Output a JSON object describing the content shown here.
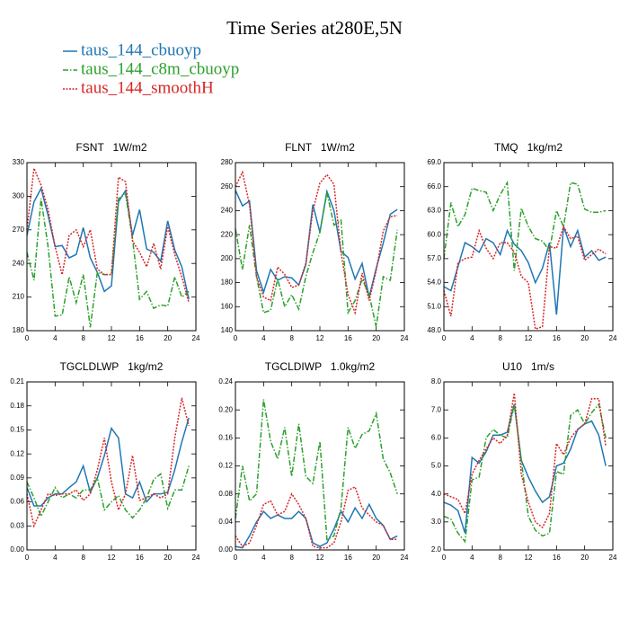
{
  "title": "Time Series at280E,5N",
  "legend": [
    {
      "name": "taus_144_cbuoyp",
      "color": "#1f77b4",
      "dash": "solid"
    },
    {
      "name": "taus_144_c8m_cbuoyp",
      "color": "#2ca02c",
      "dash": "dashdot"
    },
    {
      "name": "taus_144_smoothH",
      "color": "#d62728",
      "dash": "dot"
    }
  ],
  "chart_data": [
    {
      "type": "line",
      "title": "FSNT   1W/m2",
      "x": [
        0,
        1,
        2,
        3,
        4,
        5,
        6,
        7,
        8,
        9,
        10,
        11,
        12,
        13,
        14,
        15,
        16,
        17,
        18,
        19,
        20,
        21,
        22,
        23
      ],
      "xlim": [
        0,
        24
      ],
      "xticks": [
        0,
        4,
        8,
        12,
        16,
        20,
        24
      ],
      "ylim": [
        180,
        330
      ],
      "yticks": [
        180,
        210,
        240,
        270,
        300,
        330
      ],
      "series": [
        {
          "values": [
            265,
            295,
            307,
            283,
            255,
            256,
            245,
            248,
            272,
            245,
            232,
            215,
            220,
            295,
            305,
            265,
            288,
            253,
            250,
            242,
            278,
            252,
            237,
            208
          ]
        },
        {
          "values": [
            250,
            225,
            298,
            255,
            193,
            194,
            228,
            205,
            230,
            183,
            232,
            230,
            230,
            298,
            302,
            262,
            208,
            215,
            200,
            203,
            202,
            228,
            210,
            215
          ]
        },
        {
          "values": [
            270,
            325,
            310,
            288,
            255,
            230,
            265,
            270,
            255,
            270,
            235,
            230,
            230,
            317,
            313,
            260,
            250,
            237,
            258,
            235,
            273,
            248,
            228,
            205
          ]
        }
      ]
    },
    {
      "type": "line",
      "title": "FLNT   1W/m2",
      "x": [
        0,
        1,
        2,
        3,
        4,
        5,
        6,
        7,
        8,
        9,
        10,
        11,
        12,
        13,
        14,
        15,
        16,
        17,
        18,
        19,
        20,
        21,
        22,
        23
      ],
      "xlim": [
        0,
        24
      ],
      "xticks": [
        0,
        4,
        8,
        12,
        16,
        20,
        24
      ],
      "ylim": [
        140,
        280
      ],
      "yticks": [
        140,
        160,
        180,
        200,
        220,
        240,
        260,
        280
      ],
      "series": [
        {
          "values": [
            257,
            244,
            248,
            190,
            172,
            191,
            182,
            185,
            184,
            178,
            195,
            245,
            222,
            256,
            240,
            206,
            201,
            183,
            196,
            168,
            192,
            213,
            237,
            241
          ]
        },
        {
          "values": [
            225,
            191,
            228,
            185,
            155,
            157,
            183,
            160,
            170,
            158,
            185,
            205,
            222,
            255,
            228,
            232,
            155,
            165,
            183,
            170,
            143,
            185,
            182,
            224
          ]
        },
        {
          "values": [
            260,
            272,
            245,
            185,
            168,
            165,
            193,
            187,
            176,
            178,
            196,
            240,
            263,
            270,
            262,
            205,
            170,
            155,
            188,
            165,
            190,
            223,
            235,
            236
          ]
        }
      ]
    },
    {
      "type": "line",
      "title": "TMQ   1kg/m2",
      "x": [
        0,
        1,
        2,
        3,
        4,
        5,
        6,
        7,
        8,
        9,
        10,
        11,
        12,
        13,
        14,
        15,
        16,
        17,
        18,
        19,
        20,
        21,
        22,
        23
      ],
      "xlim": [
        0,
        24
      ],
      "xticks": [
        0,
        4,
        8,
        12,
        16,
        20,
        24
      ],
      "ylim": [
        48,
        69
      ],
      "yticks": [
        {
          "value": 48,
          "label": "48.0"
        },
        {
          "value": 51,
          "label": "51.0"
        },
        {
          "value": 54,
          "label": "54.0"
        },
        {
          "value": 57,
          "label": "57.0"
        },
        {
          "value": 60,
          "label": "60.0"
        },
        {
          "value": 63,
          "label": "63.0"
        },
        {
          "value": 66,
          "label": "66.0"
        },
        {
          "value": 69,
          "label": "69.0"
        }
      ],
      "series": [
        {
          "values": [
            53.5,
            53.0,
            56.0,
            59.0,
            58.5,
            57.8,
            59.5,
            59.0,
            57.5,
            60.5,
            58.8,
            58.0,
            56.5,
            54.0,
            55.8,
            59.0,
            50.0,
            61.0,
            58.5,
            60.5,
            57.2,
            58.0,
            56.8,
            57.2
          ]
        },
        {
          "values": [
            57.0,
            64.0,
            61.0,
            62.5,
            65.8,
            65.5,
            65.3,
            63.0,
            65.0,
            66.5,
            55.5,
            63.3,
            61.0,
            59.5,
            59.2,
            58.0,
            63.0,
            61.0,
            66.5,
            66.3,
            63.2,
            62.8,
            62.8,
            63.0
          ]
        },
        {
          "values": [
            53.0,
            49.8,
            56.5,
            57.0,
            57.2,
            60.5,
            58.3,
            57.0,
            59.0,
            59.0,
            57.8,
            54.8,
            54.0,
            48.2,
            48.5,
            58.5,
            58.3,
            61.0,
            59.5,
            59.8,
            56.8,
            57.5,
            58.2,
            57.6
          ]
        }
      ]
    },
    {
      "type": "line",
      "title": "TGCLDLWP   1kg/m2",
      "x": [
        0,
        1,
        2,
        3,
        4,
        5,
        6,
        7,
        8,
        9,
        10,
        11,
        12,
        13,
        14,
        15,
        16,
        17,
        18,
        19,
        20,
        21,
        22,
        23
      ],
      "xlim": [
        0,
        24
      ],
      "xticks": [
        0,
        4,
        8,
        12,
        16,
        20,
        24
      ],
      "ylim": [
        0,
        0.21
      ],
      "yticks": [
        {
          "value": 0,
          "label": "0.00"
        },
        {
          "value": 0.03,
          "label": "0.03"
        },
        {
          "value": 0.06,
          "label": "0.06"
        },
        {
          "value": 0.09,
          "label": "0.09"
        },
        {
          "value": 0.12,
          "label": "0.12"
        },
        {
          "value": 0.15,
          "label": "0.15"
        },
        {
          "value": 0.18,
          "label": "0.18"
        },
        {
          "value": 0.21,
          "label": "0.21"
        }
      ],
      "series": [
        {
          "values": [
            0.078,
            0.055,
            0.055,
            0.065,
            0.07,
            0.07,
            0.078,
            0.085,
            0.105,
            0.072,
            0.09,
            0.118,
            0.152,
            0.14,
            0.07,
            0.065,
            0.085,
            0.06,
            0.07,
            0.07,
            0.072,
            0.1,
            0.135,
            0.165
          ]
        },
        {
          "values": [
            0.085,
            0.065,
            0.042,
            0.06,
            0.078,
            0.065,
            0.07,
            0.065,
            0.075,
            0.075,
            0.09,
            0.05,
            0.06,
            0.068,
            0.05,
            0.04,
            0.05,
            0.065,
            0.088,
            0.095,
            0.052,
            0.075,
            0.075,
            0.105
          ]
        },
        {
          "values": [
            0.07,
            0.03,
            0.05,
            0.07,
            0.068,
            0.07,
            0.07,
            0.075,
            0.062,
            0.07,
            0.1,
            0.14,
            0.085,
            0.05,
            0.07,
            0.118,
            0.062,
            0.065,
            0.07,
            0.065,
            0.07,
            0.14,
            0.19,
            0.155
          ]
        }
      ]
    },
    {
      "type": "line",
      "title": "TGCLDIWP   1.0kg/m2",
      "x": [
        0,
        1,
        2,
        3,
        4,
        5,
        6,
        7,
        8,
        9,
        10,
        11,
        12,
        13,
        14,
        15,
        16,
        17,
        18,
        19,
        20,
        21,
        22,
        23
      ],
      "xlim": [
        0,
        24
      ],
      "xticks": [
        0,
        4,
        8,
        12,
        16,
        20,
        24
      ],
      "ylim": [
        0,
        0.24
      ],
      "yticks": [
        {
          "value": 0,
          "label": "0.00"
        },
        {
          "value": 0.04,
          "label": "0.04"
        },
        {
          "value": 0.08,
          "label": "0.08"
        },
        {
          "value": 0.12,
          "label": "0.12"
        },
        {
          "value": 0.16,
          "label": "0.16"
        },
        {
          "value": 0.2,
          "label": "0.20"
        },
        {
          "value": 0.24,
          "label": "0.24"
        }
      ],
      "series": [
        {
          "values": [
            0.005,
            0.003,
            0.02,
            0.04,
            0.055,
            0.045,
            0.05,
            0.045,
            0.045,
            0.055,
            0.045,
            0.01,
            0.005,
            0.01,
            0.03,
            0.055,
            0.04,
            0.06,
            0.045,
            0.065,
            0.045,
            0.035,
            0.015,
            0.02
          ]
        },
        {
          "values": [
            0.045,
            0.12,
            0.07,
            0.08,
            0.215,
            0.155,
            0.13,
            0.175,
            0.105,
            0.18,
            0.105,
            0.095,
            0.155,
            0.015,
            0.02,
            0.06,
            0.175,
            0.145,
            0.165,
            0.17,
            0.195,
            0.13,
            0.11,
            0.08
          ]
        },
        {
          "values": [
            0.02,
            0.005,
            0.01,
            0.035,
            0.065,
            0.07,
            0.05,
            0.055,
            0.08,
            0.065,
            0.045,
            0.005,
            0.003,
            0.003,
            0.01,
            0.04,
            0.085,
            0.09,
            0.06,
            0.05,
            0.04,
            0.035,
            0.015,
            0.015
          ]
        }
      ]
    },
    {
      "type": "line",
      "title": "U10   1m/s",
      "x": [
        0,
        1,
        2,
        3,
        4,
        5,
        6,
        7,
        8,
        9,
        10,
        11,
        12,
        13,
        14,
        15,
        16,
        17,
        18,
        19,
        20,
        21,
        22,
        23
      ],
      "xlim": [
        0,
        24
      ],
      "xticks": [
        0,
        4,
        8,
        12,
        16,
        20,
        24
      ],
      "ylim": [
        2,
        8
      ],
      "yticks": [
        {
          "value": 2,
          "label": "2.0"
        },
        {
          "value": 3,
          "label": "3.0"
        },
        {
          "value": 4,
          "label": "4.0"
        },
        {
          "value": 5,
          "label": "5.0"
        },
        {
          "value": 6,
          "label": "6.0"
        },
        {
          "value": 7,
          "label": "7.0"
        },
        {
          "value": 8,
          "label": "8.0"
        }
      ],
      "series": [
        {
          "values": [
            3.7,
            3.6,
            3.4,
            2.6,
            5.3,
            5.1,
            5.5,
            6.1,
            6.1,
            6.2,
            7.2,
            5.2,
            4.6,
            4.1,
            3.7,
            3.9,
            5.0,
            5.1,
            5.6,
            6.3,
            6.5,
            6.6,
            6.1,
            5.0
          ]
        },
        {
          "values": [
            3.2,
            3.1,
            2.6,
            2.3,
            4.5,
            4.6,
            6.0,
            6.3,
            6.1,
            6.0,
            7.2,
            5.2,
            3.2,
            2.7,
            2.5,
            2.6,
            4.8,
            4.7,
            6.8,
            7.0,
            6.5,
            6.9,
            7.2,
            6.0
          ]
        },
        {
          "values": [
            4.0,
            3.9,
            3.8,
            3.3,
            4.7,
            5.2,
            5.6,
            6.0,
            5.8,
            6.1,
            7.6,
            4.7,
            3.7,
            3.0,
            2.8,
            3.3,
            5.8,
            5.4,
            6.0,
            6.3,
            6.5,
            7.4,
            7.4,
            5.7
          ]
        }
      ]
    }
  ]
}
